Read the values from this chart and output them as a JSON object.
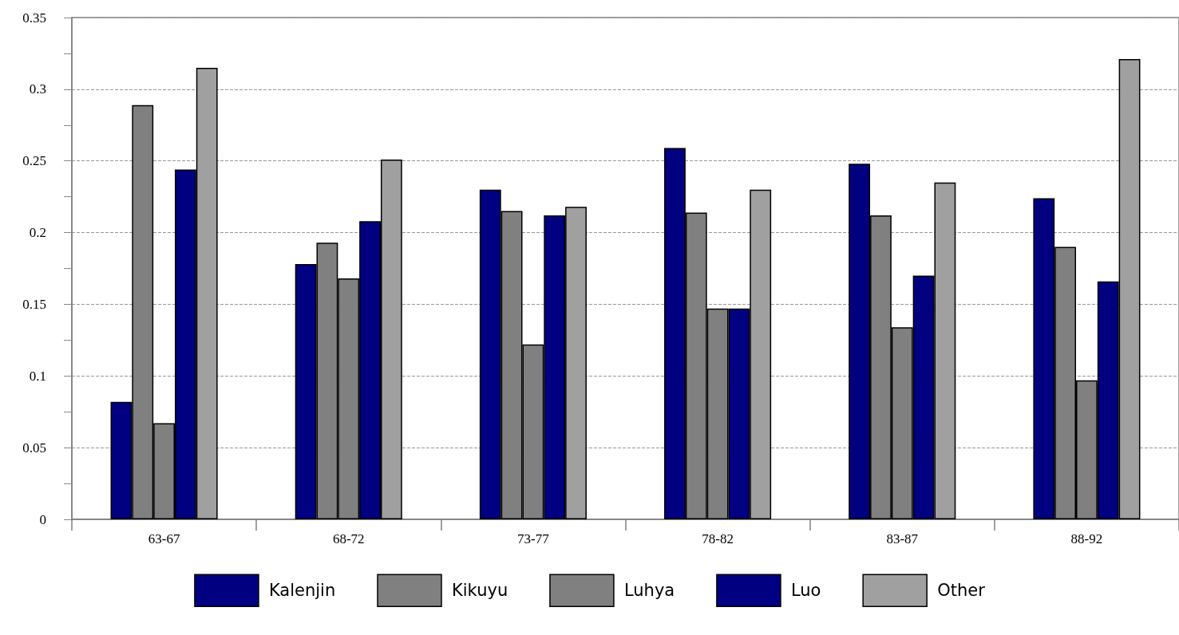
{
  "chart_data": {
    "type": "bar",
    "categories": [
      "63-67",
      "68-72",
      "73-77",
      "78-82",
      "83-87",
      "88-92"
    ],
    "series": [
      {
        "name": "Kalenjin",
        "color": "#000080",
        "values": [
          0.082,
          0.178,
          0.23,
          0.259,
          0.248,
          0.224
        ]
      },
      {
        "name": "Kikuyu",
        "color": "#808080",
        "values": [
          0.289,
          0.193,
          0.215,
          0.214,
          0.212,
          0.19
        ]
      },
      {
        "name": "Luhya",
        "color": "#808080",
        "values": [
          0.067,
          0.168,
          0.122,
          0.147,
          0.134,
          0.097
        ]
      },
      {
        "name": "Luo",
        "color": "#000080",
        "values": [
          0.244,
          0.208,
          0.212,
          0.147,
          0.17,
          0.166
        ]
      },
      {
        "name": "Other",
        "color": "#a0a0a0",
        "values": [
          0.315,
          0.251,
          0.218,
          0.23,
          0.235,
          0.321
        ]
      }
    ],
    "ylim": [
      0,
      0.35
    ],
    "yticks": [
      0,
      {
        "value": 0.025,
        "label": null
      },
      0.05,
      {
        "value": 0.075,
        "label": null
      },
      0.1,
      {
        "value": 0.125,
        "label": null
      },
      0.15,
      {
        "value": 0.175,
        "label": null
      },
      0.2,
      {
        "value": 0.225,
        "label": null
      },
      0.25,
      {
        "value": 0.275,
        "label": null
      },
      0.3,
      {
        "value": 0.325,
        "label": null
      },
      0.35
    ],
    "grid": "y",
    "legend": "bottom"
  }
}
